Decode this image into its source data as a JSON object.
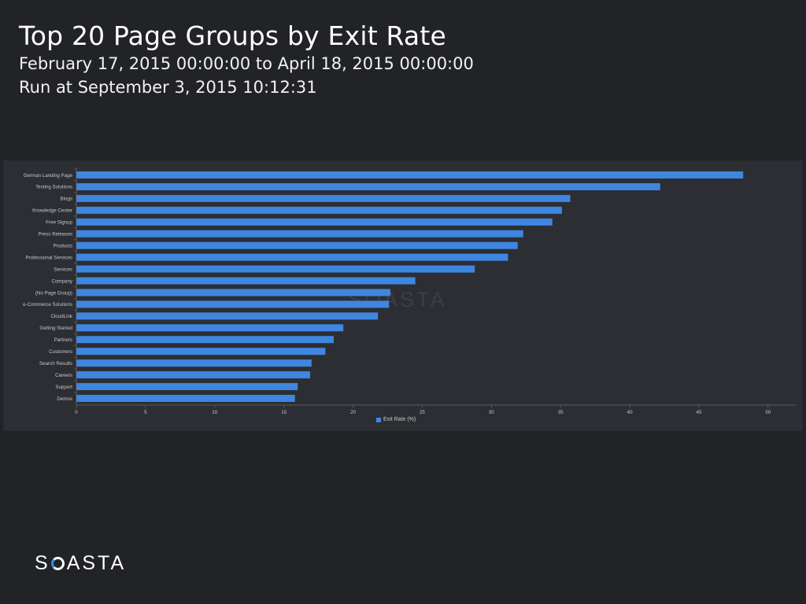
{
  "header": {
    "title": "Top 20 Page Groups by Exit Rate",
    "date_range": "February 17, 2015 00:00:00 to April 18, 2015 00:00:00",
    "run_at": "Run at September 3, 2015 10:12:31"
  },
  "watermark": "SOASTA",
  "logo": {
    "prefix": "S",
    "suffix": "ASTA",
    "accent_color": "#3a8dde"
  },
  "colors": {
    "bar": "#3f86e0",
    "background": "#222326",
    "panel": "#2c2e33"
  },
  "chart_data": {
    "type": "bar",
    "orientation": "horizontal",
    "categories": [
      "German Landing Page",
      "Testing Solutions",
      "Blogs",
      "Knowledge Center",
      "Free Signup",
      "Press Releases",
      "Products",
      "Professional Services",
      "Services",
      "Company",
      "(No Page Group)",
      "e-Commerce Solutions",
      "CloudLink",
      "Getting Started",
      "Partners",
      "Customers",
      "Search Results",
      "Careers",
      "Support",
      "Demos"
    ],
    "series": [
      {
        "name": "Exit Rate (%)",
        "values": [
          48.2,
          42.2,
          35.7,
          35.1,
          34.4,
          32.3,
          31.9,
          31.2,
          28.8,
          24.5,
          22.7,
          22.6,
          21.8,
          19.3,
          18.6,
          18.0,
          17.0,
          16.9,
          16.0,
          15.8
        ]
      }
    ],
    "xticks": [
      "0",
      "5",
      "10",
      "15",
      "20",
      "25",
      "30",
      "35",
      "40",
      "45",
      "50"
    ],
    "xlim": [
      0,
      52
    ],
    "grid": false,
    "legend_position": "bottom"
  }
}
